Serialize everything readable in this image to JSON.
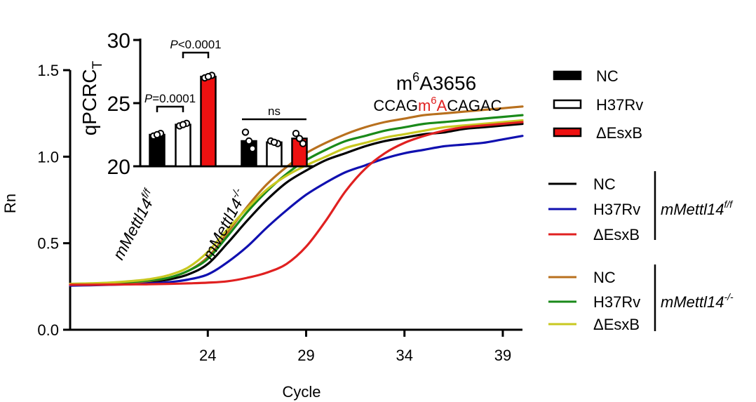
{
  "chart_data": [
    {
      "type": "line",
      "title": "",
      "xlabel": "Cycle",
      "ylabel": "Rn",
      "xlim": [
        17,
        40
      ],
      "ylim": [
        0.0,
        1.5
      ],
      "xticks": [
        24,
        29,
        34,
        39
      ],
      "yticks": [
        0.0,
        0.5,
        1.0,
        1.5
      ],
      "ytick_labels": [
        "0.0",
        "0.5",
        "1.0",
        "1.5"
      ],
      "grid": false,
      "annotation": {
        "title_base": "m",
        "title_sup": "6",
        "title_rest": "A3656",
        "seq_pre": "CCAG",
        "seq_mod_m": "m",
        "seq_mod_sup": "6",
        "seq_mod_A": "A",
        "seq_post": "CAGAC"
      },
      "legend_groups": [
        {
          "label": "mMettl14",
          "sup": "f/f"
        },
        {
          "label": "mMettl14",
          "sup": "-/-"
        }
      ],
      "series": [
        {
          "name": "NC",
          "group": 0,
          "color": "#000000",
          "x": [
            17,
            18,
            19,
            20,
            21,
            22,
            23,
            24,
            25,
            26,
            27,
            28,
            29,
            30,
            31,
            32,
            33,
            34,
            35,
            36,
            37,
            38,
            39,
            40
          ],
          "y": [
            0.26,
            0.262,
            0.265,
            0.27,
            0.278,
            0.29,
            0.32,
            0.38,
            0.5,
            0.63,
            0.75,
            0.85,
            0.92,
            0.98,
            1.02,
            1.06,
            1.09,
            1.11,
            1.13,
            1.14,
            1.16,
            1.17,
            1.18,
            1.19
          ]
        },
        {
          "name": "H37Rv",
          "group": 0,
          "color": "#1010b0",
          "x": [
            17,
            18,
            19,
            20,
            21,
            22,
            23,
            24,
            25,
            26,
            27,
            28,
            29,
            30,
            31,
            32,
            33,
            34,
            35,
            36,
            37,
            38,
            39,
            40
          ],
          "y": [
            0.255,
            0.257,
            0.26,
            0.263,
            0.268,
            0.275,
            0.29,
            0.32,
            0.39,
            0.48,
            0.59,
            0.69,
            0.78,
            0.85,
            0.91,
            0.95,
            0.99,
            1.02,
            1.04,
            1.06,
            1.07,
            1.08,
            1.1,
            1.12
          ]
        },
        {
          "name": "ΔEsxB",
          "group": 0,
          "color": "#e02020",
          "x": [
            17,
            18,
            19,
            20,
            21,
            22,
            23,
            24,
            25,
            26,
            27,
            28,
            29,
            30,
            31,
            32,
            33,
            34,
            35,
            36,
            37,
            38,
            39,
            40
          ],
          "y": [
            0.26,
            0.26,
            0.261,
            0.262,
            0.263,
            0.265,
            0.268,
            0.272,
            0.28,
            0.3,
            0.33,
            0.38,
            0.48,
            0.63,
            0.8,
            0.93,
            1.02,
            1.08,
            1.12,
            1.15,
            1.17,
            1.18,
            1.19,
            1.2
          ]
        },
        {
          "name": "NC",
          "group": 1,
          "color": "#b8701e",
          "x": [
            17,
            18,
            19,
            20,
            21,
            22,
            23,
            24,
            25,
            26,
            27,
            28,
            29,
            30,
            31,
            32,
            33,
            34,
            35,
            36,
            37,
            38,
            39,
            40
          ],
          "y": [
            0.26,
            0.262,
            0.266,
            0.272,
            0.282,
            0.3,
            0.34,
            0.42,
            0.56,
            0.71,
            0.84,
            0.94,
            1.02,
            1.08,
            1.13,
            1.17,
            1.2,
            1.22,
            1.24,
            1.25,
            1.26,
            1.27,
            1.28,
            1.29
          ]
        },
        {
          "name": "H37Rv",
          "group": 1,
          "color": "#1a8a1a",
          "x": [
            17,
            18,
            19,
            20,
            21,
            22,
            23,
            24,
            25,
            26,
            27,
            28,
            29,
            30,
            31,
            32,
            33,
            34,
            35,
            36,
            37,
            38,
            39,
            40
          ],
          "y": [
            0.265,
            0.267,
            0.27,
            0.275,
            0.285,
            0.3,
            0.34,
            0.41,
            0.54,
            0.68,
            0.8,
            0.9,
            0.98,
            1.04,
            1.09,
            1.12,
            1.15,
            1.17,
            1.19,
            1.2,
            1.21,
            1.22,
            1.23,
            1.24
          ]
        },
        {
          "name": "ΔEsxB",
          "group": 1,
          "color": "#c8c820",
          "x": [
            17,
            18,
            19,
            20,
            21,
            22,
            23,
            24,
            25,
            26,
            27,
            28,
            29,
            30,
            31,
            32,
            33,
            34,
            35,
            36,
            37,
            38,
            39,
            40
          ],
          "y": [
            0.265,
            0.268,
            0.272,
            0.28,
            0.292,
            0.315,
            0.36,
            0.45,
            0.58,
            0.7,
            0.81,
            0.89,
            0.95,
            1.0,
            1.05,
            1.08,
            1.11,
            1.13,
            1.15,
            1.17,
            1.18,
            1.19,
            1.2,
            1.21
          ]
        }
      ]
    },
    {
      "type": "bar",
      "title": "",
      "ylabel": "qPCRC",
      "ylabel_sub": "T",
      "ylim": [
        20,
        30
      ],
      "yticks": [
        20,
        25,
        30
      ],
      "ytick_labels": [
        "20",
        "25",
        "30"
      ],
      "grid": false,
      "group_labels": [
        {
          "label": "mMettl14",
          "sup": "f/f"
        },
        {
          "label": "mMettl14",
          "sup": "-/-"
        }
      ],
      "bars": [
        {
          "name": "NC",
          "group": 0,
          "value": 22.5,
          "fill": "#000000",
          "points": [
            22.4,
            22.6,
            22.5
          ]
        },
        {
          "name": "H37Rv",
          "group": 0,
          "value": 23.3,
          "fill": "#ffffff",
          "points": [
            23.2,
            23.4,
            23.3
          ]
        },
        {
          "name": "ΔEsxB",
          "group": 0,
          "value": 27.1,
          "fill": "#ee1111",
          "points": [
            27.0,
            27.2,
            27.1
          ]
        },
        {
          "name": "NC",
          "group": 1,
          "value": 22.0,
          "fill": "#000000",
          "points": [
            22.7,
            21.4,
            22.0
          ]
        },
        {
          "name": "H37Rv",
          "group": 1,
          "value": 21.9,
          "fill": "#ffffff",
          "points": [
            22.0,
            21.8,
            21.9
          ]
        },
        {
          "name": "ΔEsxB",
          "group": 1,
          "value": 22.2,
          "fill": "#ee1111",
          "points": [
            22.6,
            21.8,
            22.2
          ]
        }
      ],
      "comparisons": [
        {
          "from": 0,
          "to": 1,
          "label_p": "P",
          "label_rest": "=0.0001"
        },
        {
          "from": 1,
          "to": 2,
          "label_p": "P",
          "label_rest": "<0.0001"
        },
        {
          "from": 3,
          "to": 5,
          "label_p": "",
          "label_rest": "ns"
        }
      ],
      "legend": [
        {
          "name": "NC",
          "fill": "#000000"
        },
        {
          "name": "H37Rv",
          "fill": "#ffffff"
        },
        {
          "name": "ΔEsxB",
          "fill": "#ee1111"
        }
      ]
    }
  ]
}
